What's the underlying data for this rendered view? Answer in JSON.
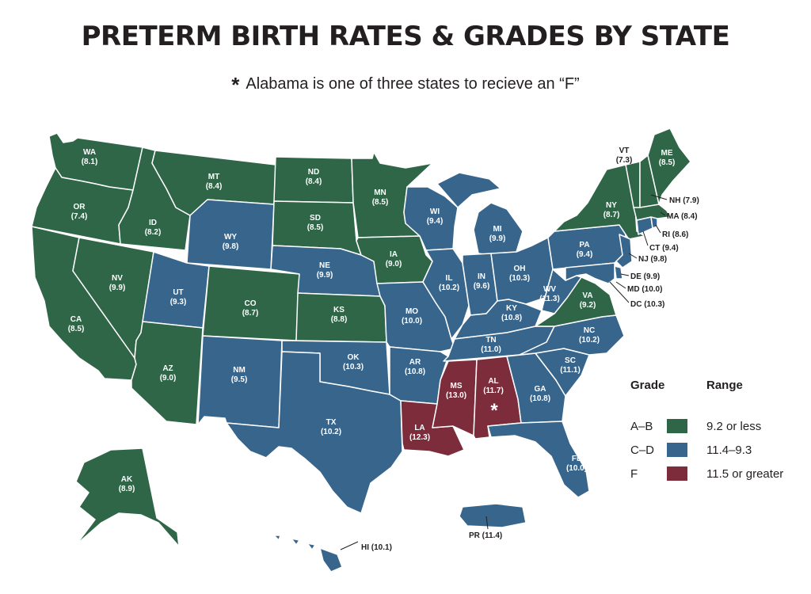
{
  "title": "PRETERM BIRTH RATES & GRADES BY STATE",
  "subtitle": {
    "marker": "*",
    "text": "Alabama is one of three states to recieve an “F”"
  },
  "colors": {
    "ab": "#2e6647",
    "cd": "#37658c",
    "f": "#7c2c3b"
  },
  "star_marker": "*",
  "legend": {
    "grade_header": "Grade",
    "range_header": "Range",
    "items": [
      {
        "grade": "A–B",
        "range": "9.2 or less",
        "color": "#2e6647"
      },
      {
        "grade": "C–D",
        "range": "11.4–9.3",
        "color": "#37658c"
      },
      {
        "grade": "F",
        "range": "11.5 or greater",
        "color": "#7c2c3b"
      }
    ]
  },
  "states": {
    "WA": {
      "abbr": "WA",
      "rate": "(8.1)"
    },
    "OR": {
      "abbr": "OR",
      "rate": "(7.4)"
    },
    "CA": {
      "abbr": "CA",
      "rate": "(8.5)"
    },
    "ID": {
      "abbr": "ID",
      "rate": "(8.2)"
    },
    "NV": {
      "abbr": "NV",
      "rate": "(9.9)"
    },
    "MT": {
      "abbr": "MT",
      "rate": "(8.4)"
    },
    "WY": {
      "abbr": "WY",
      "rate": "(9.8)"
    },
    "UT": {
      "abbr": "UT",
      "rate": "(9.3)"
    },
    "AZ": {
      "abbr": "AZ",
      "rate": "(9.0)"
    },
    "CO": {
      "abbr": "CO",
      "rate": "(8.7)"
    },
    "NM": {
      "abbr": "NM",
      "rate": "(9.5)"
    },
    "ND": {
      "abbr": "ND",
      "rate": "(8.4)"
    },
    "SD": {
      "abbr": "SD",
      "rate": "(8.5)"
    },
    "NE": {
      "abbr": "NE",
      "rate": "(9.9)"
    },
    "KS": {
      "abbr": "KS",
      "rate": "(8.8)"
    },
    "OK": {
      "abbr": "OK",
      "rate": "(10.3)"
    },
    "TX": {
      "abbr": "TX",
      "rate": "(10.2)"
    },
    "MN": {
      "abbr": "MN",
      "rate": "(8.5)"
    },
    "IA": {
      "abbr": "IA",
      "rate": "(9.0)"
    },
    "MO": {
      "abbr": "MO",
      "rate": "(10.0)"
    },
    "AR": {
      "abbr": "AR",
      "rate": "(10.8)"
    },
    "LA": {
      "abbr": "LA",
      "rate": "(12.3)"
    },
    "WI": {
      "abbr": "WI",
      "rate": "(9.4)"
    },
    "IL": {
      "abbr": "IL",
      "rate": "(10.2)"
    },
    "MI": {
      "abbr": "MI",
      "rate": "(9.9)"
    },
    "IN": {
      "abbr": "IN",
      "rate": "(9.6)"
    },
    "OH": {
      "abbr": "OH",
      "rate": "(10.3)"
    },
    "KY": {
      "abbr": "KY",
      "rate": "(10.8)"
    },
    "TN": {
      "abbr": "TN",
      "rate": "(11.0)"
    },
    "MS": {
      "abbr": "MS",
      "rate": "(13.0)"
    },
    "AL": {
      "abbr": "AL",
      "rate": "(11.7)"
    },
    "GA": {
      "abbr": "GA",
      "rate": "(10.8)"
    },
    "FL": {
      "abbr": "FL",
      "rate": "(10.0)"
    },
    "SC": {
      "abbr": "SC",
      "rate": "(11.1)"
    },
    "NC": {
      "abbr": "NC",
      "rate": "(10.2)"
    },
    "VA": {
      "abbr": "VA",
      "rate": "(9.2)"
    },
    "WV": {
      "abbr": "WV",
      "rate": "(11.3)"
    },
    "PA": {
      "abbr": "PA",
      "rate": "(9.4)"
    },
    "NY": {
      "abbr": "NY",
      "rate": "(8.7)"
    },
    "ME": {
      "abbr": "ME",
      "rate": "(8.5)"
    },
    "VT": {
      "abbr": "VT",
      "rate": "(7.3)"
    },
    "AK": {
      "abbr": "AK",
      "rate": "(8.9)"
    }
  },
  "callouts": {
    "NH": "NH (7.9)",
    "MA": "MA (8.4)",
    "RI": "RI (8.6)",
    "CT": "CT (9.4)",
    "NJ": "NJ (9.8)",
    "DE": "DE (9.9)",
    "MD": "MD (10.0)",
    "DC": "DC (10.3)",
    "HI": "HI (10.1)",
    "PR": "PR (11.4)"
  }
}
